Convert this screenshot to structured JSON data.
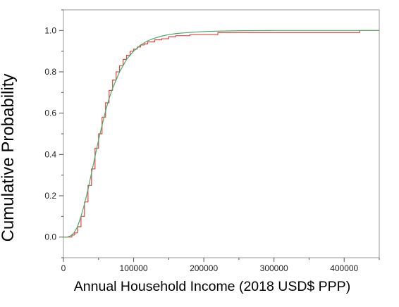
{
  "chart_data": {
    "type": "line",
    "xlabel": "Annual Household Income (2018 USD$ PPP)",
    "ylabel": "Cumulative Probability",
    "xlim": [
      0,
      450000
    ],
    "ylim": [
      -0.1,
      1.1
    ],
    "x_ticks": [
      0,
      100000,
      200000,
      300000,
      400000
    ],
    "x_tick_labels": [
      "0",
      "100000",
      "200000",
      "300000",
      "400000"
    ],
    "y_ticks": [
      0.0,
      0.2,
      0.4,
      0.6,
      0.8,
      1.0
    ],
    "y_tick_labels": [
      "0.0",
      "0.2",
      "0.4",
      "0.6",
      "0.8",
      "1.0"
    ],
    "grid": false,
    "series": [
      {
        "color": "#e0443c",
        "step": true,
        "x": [
          0,
          8000,
          12000,
          16000,
          20000,
          25000,
          30000,
          35000,
          40000,
          45000,
          50000,
          55000,
          60000,
          65000,
          70000,
          75000,
          80000,
          85000,
          90000,
          95000,
          100000,
          105000,
          110000,
          115000,
          120000,
          130000,
          140000,
          150000,
          160000,
          180000,
          220000,
          420000,
          422000,
          450000
        ],
        "y": [
          0.0,
          0.0,
          0.01,
          0.02,
          0.05,
          0.1,
          0.17,
          0.25,
          0.33,
          0.43,
          0.5,
          0.58,
          0.65,
          0.71,
          0.76,
          0.8,
          0.83,
          0.86,
          0.88,
          0.9,
          0.91,
          0.92,
          0.93,
          0.935,
          0.945,
          0.955,
          0.96,
          0.97,
          0.975,
          0.98,
          0.99,
          0.99,
          1.0,
          1.0
        ]
      },
      {
        "color": "#4aaa6a",
        "step": false,
        "x": [
          0,
          5000,
          10000,
          15000,
          20000,
          25000,
          30000,
          35000,
          40000,
          45000,
          50000,
          55000,
          60000,
          65000,
          70000,
          75000,
          80000,
          90000,
          100000,
          110000,
          120000,
          130000,
          140000,
          150000,
          160000,
          180000,
          200000,
          220000,
          250000,
          300000,
          350000,
          400000,
          450000
        ],
        "y": [
          0.0,
          0.0,
          0.005,
          0.02,
          0.05,
          0.1,
          0.16,
          0.23,
          0.31,
          0.39,
          0.47,
          0.54,
          0.61,
          0.67,
          0.72,
          0.76,
          0.8,
          0.86,
          0.9,
          0.93,
          0.95,
          0.963,
          0.973,
          0.98,
          0.985,
          0.991,
          0.995,
          0.997,
          0.999,
          1.0,
          1.0,
          1.0,
          1.0
        ]
      }
    ]
  }
}
